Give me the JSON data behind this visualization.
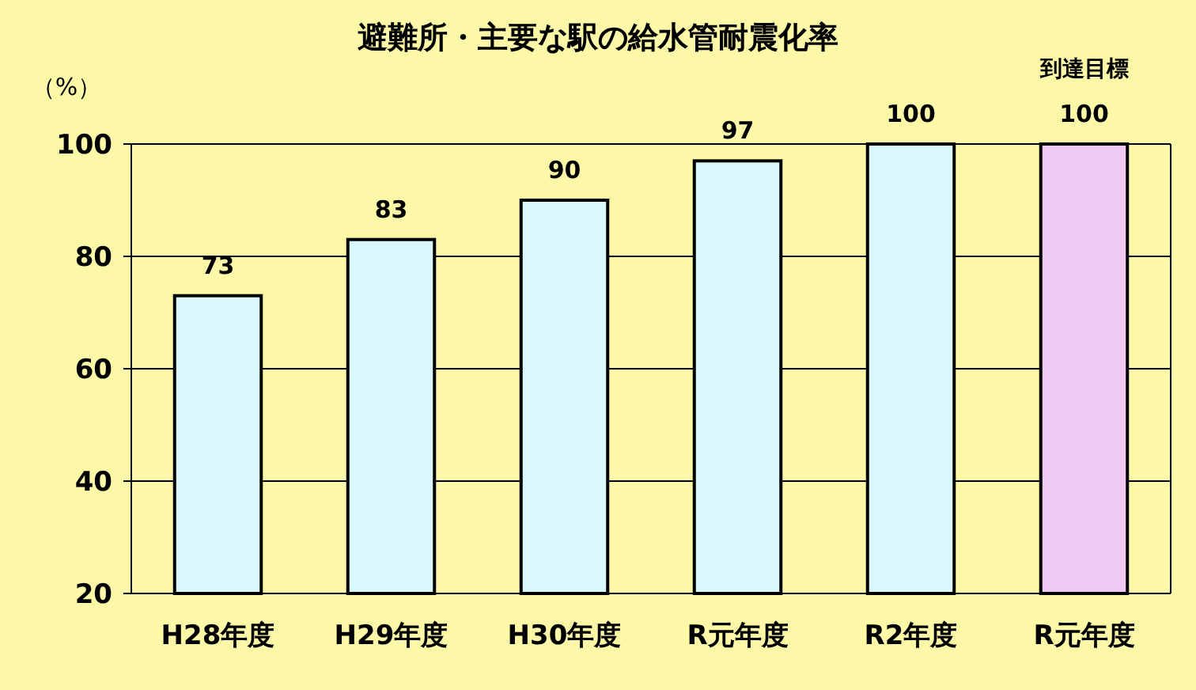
{
  "chart_data": {
    "type": "bar",
    "title": "避難所・主要な駅の給水管耐震化率",
    "ylabel": "（%）",
    "categories": [
      "H28年度",
      "H29年度",
      "H30年度",
      "R元年度",
      "R2年度",
      "R元年度"
    ],
    "values": [
      73,
      83,
      90,
      97,
      100,
      100
    ],
    "colors": [
      "#d8f8fc",
      "#d8f8fc",
      "#d8f8fc",
      "#d8f8fc",
      "#d8f8fc",
      "#f0c8f4"
    ],
    "ylim": [
      20,
      100
    ],
    "yticks": [
      20,
      40,
      60,
      80,
      100
    ],
    "grid": "y",
    "data_labels": true,
    "annotations": [
      "到達目標"
    ]
  }
}
